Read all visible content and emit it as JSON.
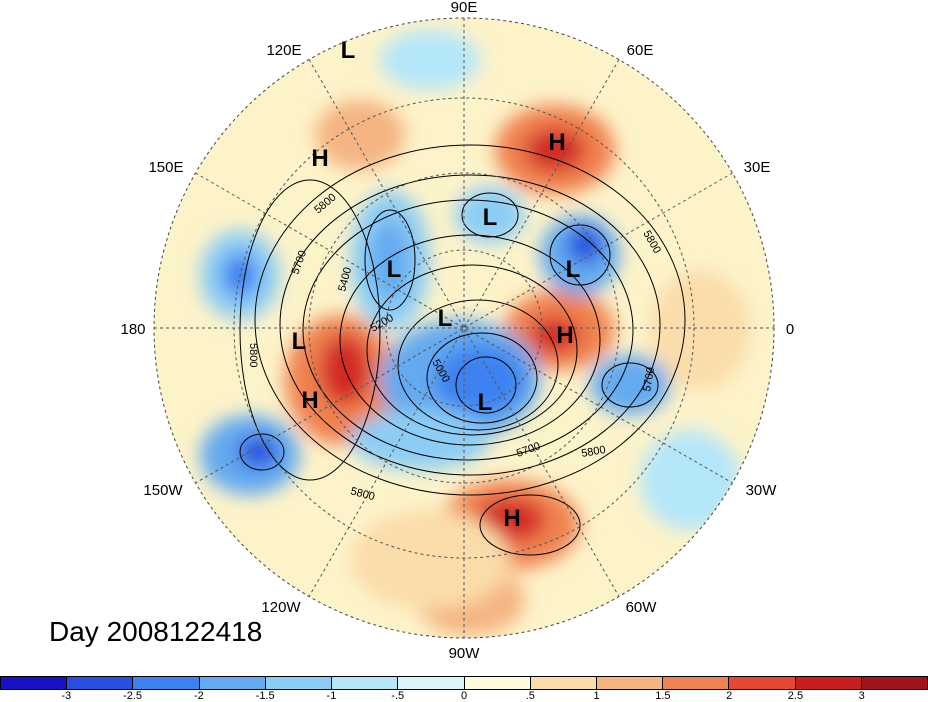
{
  "map": {
    "lon_labels": [
      "90E",
      "60E",
      "30E",
      "0",
      "30W",
      "60W",
      "90W",
      "120W",
      "150W",
      "180",
      "150E",
      "120E"
    ],
    "contour_labels": [
      "5800",
      "5800",
      "5700",
      "5800",
      "5400",
      "5200",
      "5000",
      "5800",
      "5700",
      "5800",
      "5700"
    ],
    "centers": [
      {
        "kind": "L"
      },
      {
        "kind": "H"
      },
      {
        "kind": "H"
      },
      {
        "kind": "L"
      },
      {
        "kind": "L"
      },
      {
        "kind": "L"
      },
      {
        "kind": "L"
      },
      {
        "kind": "L"
      },
      {
        "kind": "H"
      },
      {
        "kind": "H"
      },
      {
        "kind": "L"
      },
      {
        "kind": "H"
      }
    ]
  },
  "title": "Day 2008122418",
  "colorbar": {
    "colors": [
      "#1a10c8",
      "#2850e0",
      "#3c82f0",
      "#64aaf0",
      "#8ccdf5",
      "#b4e6fa",
      "#dcf5fc",
      "#fefadc",
      "#faddaa",
      "#f5b482",
      "#f08250",
      "#e64632",
      "#c81e1e",
      "#a0141e"
    ],
    "labels": [
      "-3",
      "-2.5",
      "-2",
      "-1.5",
      "-1",
      "-.5",
      "0",
      ".5",
      "1",
      "1.5",
      "2",
      "2.5",
      "3"
    ]
  }
}
